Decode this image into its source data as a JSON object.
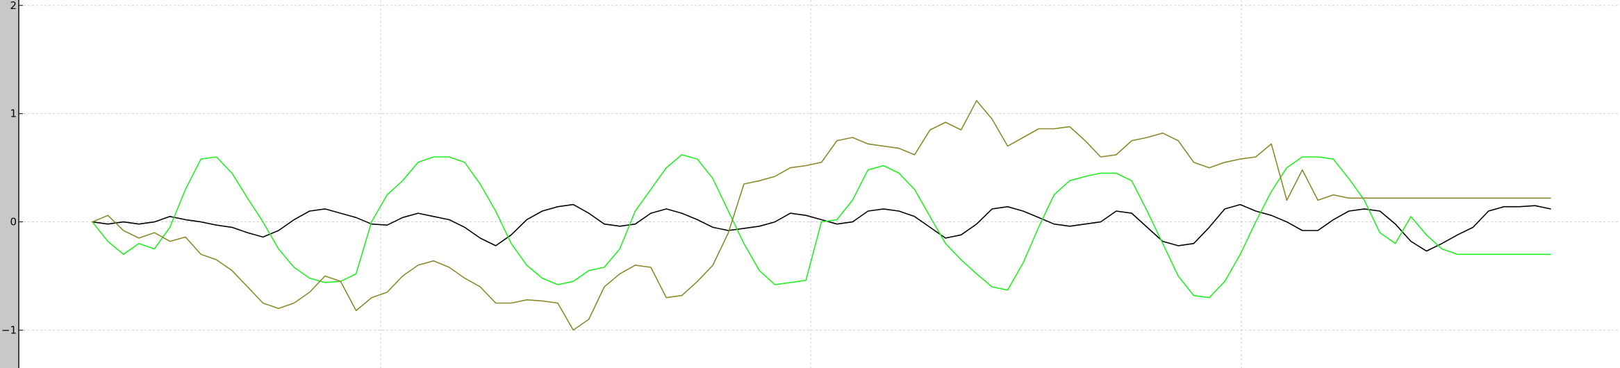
{
  "chart_data": {
    "type": "line",
    "title": "",
    "xlabel": "",
    "ylabel": "",
    "xlim": [
      0,
      1880
    ],
    "ylim": [
      -1.35,
      2.05
    ],
    "yticks": [
      2,
      1,
      0,
      -1
    ],
    "ytick_labels": [
      "2",
      "1",
      "0",
      "−1"
    ],
    "xgrid": [
      0,
      500,
      1000,
      1500
    ],
    "grid": true,
    "legend": "none",
    "series": [
      {
        "color": "#000000",
        "x": [
          0,
          20,
          40,
          60,
          80,
          100,
          120,
          140,
          160,
          180,
          200,
          220,
          240,
          260,
          280,
          300,
          320,
          340,
          360,
          380,
          400,
          420,
          440,
          460,
          480,
          500,
          520,
          540,
          560,
          580,
          600,
          620,
          640,
          660,
          680,
          700,
          720,
          740,
          760,
          780,
          800,
          820,
          840,
          860,
          880,
          900,
          920,
          940,
          960,
          980,
          1000,
          1020,
          1040,
          1060,
          1080,
          1100,
          1120,
          1140,
          1160,
          1180,
          1200,
          1220,
          1240,
          1260,
          1280,
          1300,
          1320,
          1340,
          1360,
          1380,
          1400,
          1420,
          1440,
          1460,
          1480,
          1500,
          1520,
          1540,
          1560,
          1580,
          1600,
          1620,
          1640,
          1660,
          1680,
          1700,
          1720,
          1740,
          1760,
          1780,
          1800,
          1820,
          1840,
          1860,
          1880
        ],
        "y": [
          0.0,
          -0.02,
          0.0,
          -0.02,
          0.0,
          0.05,
          0.02,
          0.0,
          -0.03,
          -0.05,
          -0.1,
          -0.14,
          -0.08,
          0.02,
          0.1,
          0.12,
          0.08,
          0.04,
          -0.02,
          -0.03,
          0.04,
          0.08,
          0.05,
          0.02,
          -0.05,
          -0.15,
          -0.22,
          -0.12,
          0.02,
          0.1,
          0.14,
          0.16,
          0.08,
          -0.02,
          -0.04,
          -0.02,
          0.08,
          0.12,
          0.08,
          0.02,
          -0.05,
          -0.08,
          -0.06,
          -0.04,
          0.0,
          0.08,
          0.06,
          0.02,
          -0.02,
          0.0,
          0.1,
          0.12,
          0.1,
          0.05,
          -0.05,
          -0.15,
          -0.12,
          -0.02,
          0.12,
          0.14,
          0.1,
          0.04,
          -0.02,
          -0.04,
          -0.02,
          0.0,
          0.1,
          0.08,
          -0.05,
          -0.18,
          -0.22,
          -0.2,
          -0.05,
          0.12,
          0.16,
          0.1,
          0.06,
          0.0,
          -0.08,
          -0.08,
          0.02,
          0.1,
          0.12,
          0.1,
          -0.02,
          -0.18,
          -0.27,
          -0.2,
          -0.12,
          -0.05,
          0.1,
          0.14,
          0.14,
          0.15,
          0.12
        ]
      },
      {
        "color": "#22ee22",
        "x": [
          0,
          20,
          40,
          60,
          80,
          100,
          120,
          140,
          160,
          180,
          200,
          220,
          240,
          260,
          280,
          300,
          320,
          340,
          360,
          380,
          400,
          420,
          440,
          460,
          480,
          500,
          520,
          540,
          560,
          580,
          600,
          620,
          640,
          660,
          680,
          700,
          720,
          740,
          760,
          780,
          800,
          820,
          840,
          860,
          880,
          900,
          920,
          940,
          960,
          980,
          1000,
          1020,
          1040,
          1060,
          1080,
          1100,
          1120,
          1140,
          1160,
          1180,
          1200,
          1220,
          1240,
          1260,
          1280,
          1300,
          1320,
          1340,
          1360,
          1380,
          1400,
          1420,
          1440,
          1460,
          1480,
          1500,
          1520,
          1540,
          1560,
          1580,
          1600,
          1620,
          1640,
          1660,
          1680,
          1700,
          1720,
          1740,
          1760,
          1780,
          1800,
          1820,
          1840,
          1860,
          1880
        ],
        "y": [
          0.0,
          -0.18,
          -0.3,
          -0.2,
          -0.25,
          -0.05,
          0.3,
          0.58,
          0.6,
          0.45,
          0.22,
          0.0,
          -0.25,
          -0.42,
          -0.52,
          -0.56,
          -0.55,
          -0.48,
          0.0,
          0.25,
          0.38,
          0.55,
          0.6,
          0.6,
          0.55,
          0.35,
          0.1,
          -0.2,
          -0.4,
          -0.52,
          -0.58,
          -0.55,
          -0.45,
          -0.42,
          -0.25,
          0.1,
          0.3,
          0.5,
          0.62,
          0.58,
          0.4,
          0.1,
          -0.2,
          -0.45,
          -0.58,
          -0.56,
          -0.54,
          0.0,
          0.02,
          0.2,
          0.48,
          0.52,
          0.45,
          0.3,
          0.05,
          -0.2,
          -0.35,
          -0.48,
          -0.6,
          -0.63,
          -0.38,
          -0.05,
          0.25,
          0.38,
          0.42,
          0.45,
          0.45,
          0.38,
          0.1,
          -0.2,
          -0.5,
          -0.68,
          -0.7,
          -0.55,
          -0.3,
          0.0,
          0.28,
          0.5,
          0.6,
          0.6,
          0.58,
          0.4,
          0.2,
          -0.1,
          -0.2,
          0.05,
          -0.12,
          -0.25,
          -0.3,
          -0.3,
          -0.3,
          -0.3,
          -0.3,
          -0.3,
          -0.3
        ]
      },
      {
        "color": "#8a8a2a",
        "x": [
          0,
          20,
          40,
          60,
          80,
          100,
          120,
          140,
          160,
          180,
          200,
          220,
          240,
          260,
          280,
          300,
          320,
          340,
          360,
          380,
          400,
          420,
          440,
          460,
          480,
          500,
          520,
          540,
          560,
          580,
          600,
          620,
          640,
          660,
          680,
          700,
          720,
          740,
          760,
          780,
          800,
          820,
          840,
          860,
          880,
          900,
          920,
          940,
          960,
          980,
          1000,
          1020,
          1040,
          1060,
          1080,
          1100,
          1120,
          1140,
          1160,
          1180,
          1200,
          1220,
          1240,
          1260,
          1280,
          1300,
          1320,
          1340,
          1360,
          1380,
          1400,
          1420,
          1440,
          1460,
          1480,
          1500,
          1520,
          1540,
          1560,
          1580,
          1600,
          1620,
          1640,
          1660,
          1680,
          1700,
          1720,
          1740,
          1760,
          1780,
          1800,
          1820,
          1840,
          1860,
          1880
        ],
        "y": [
          0.0,
          0.06,
          -0.08,
          -0.15,
          -0.1,
          -0.18,
          -0.14,
          -0.3,
          -0.35,
          -0.45,
          -0.6,
          -0.75,
          -0.8,
          -0.75,
          -0.65,
          -0.5,
          -0.55,
          -0.82,
          -0.7,
          -0.65,
          -0.5,
          -0.4,
          -0.36,
          -0.42,
          -0.52,
          -0.6,
          -0.75,
          -0.75,
          -0.72,
          -0.73,
          -0.75,
          -1.0,
          -0.9,
          -0.6,
          -0.48,
          -0.4,
          -0.42,
          -0.7,
          -0.68,
          -0.55,
          -0.4,
          -0.1,
          0.35,
          0.38,
          0.42,
          0.5,
          0.52,
          0.55,
          0.75,
          0.78,
          0.72,
          0.7,
          0.68,
          0.62,
          0.85,
          0.92,
          0.85,
          1.12,
          0.95,
          0.7,
          0.78,
          0.86,
          0.86,
          0.88,
          0.75,
          0.6,
          0.62,
          0.75,
          0.78,
          0.82,
          0.75,
          0.55,
          0.5,
          0.55,
          0.58,
          0.6,
          0.72,
          0.2,
          0.48,
          0.2,
          0.25,
          0.22,
          0.22,
          0.22,
          0.22,
          0.22,
          0.22,
          0.22,
          0.22,
          0.22,
          0.22,
          0.22,
          0.22,
          0.22,
          0.22
        ]
      }
    ]
  }
}
